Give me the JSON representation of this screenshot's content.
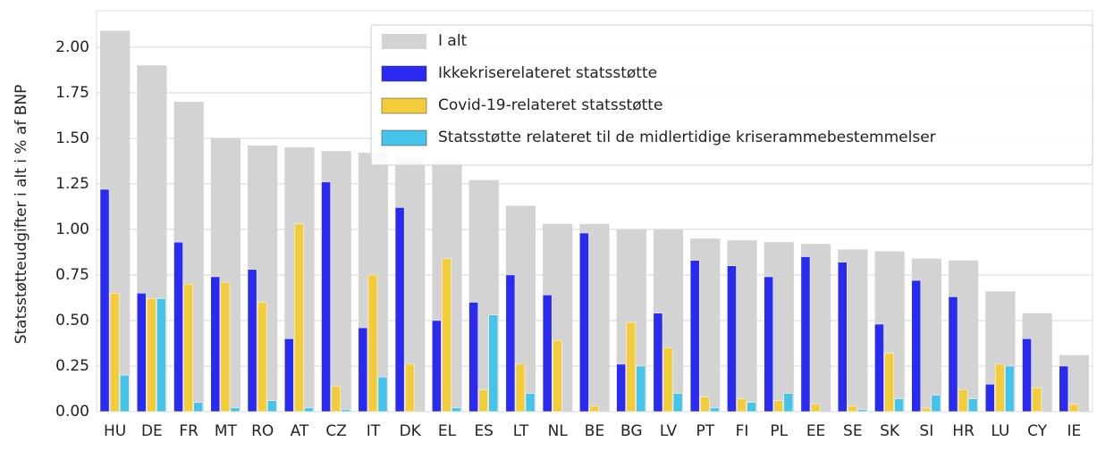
{
  "chart_data": {
    "type": "grouped-bar",
    "ylabel": "Statsstøtteudgifter i alt i % af BNP",
    "categories": [
      "HU",
      "DE",
      "FR",
      "MT",
      "RO",
      "AT",
      "CZ",
      "IT",
      "DK",
      "EL",
      "ES",
      "LT",
      "NL",
      "BE",
      "BG",
      "LV",
      "PT",
      "FI",
      "PL",
      "EE",
      "SE",
      "SK",
      "SI",
      "HR",
      "LU",
      "CY",
      "IE"
    ],
    "series": [
      {
        "name": "I alt",
        "color": "#d3d3d3",
        "values": [
          2.09,
          1.9,
          1.7,
          1.5,
          1.46,
          1.45,
          1.43,
          1.42,
          1.39,
          1.38,
          1.27,
          1.13,
          1.03,
          1.03,
          1.0,
          1.0,
          0.95,
          0.94,
          0.93,
          0.92,
          0.89,
          0.88,
          0.84,
          0.83,
          0.66,
          0.54,
          0.31
        ]
      },
      {
        "name": "Ikkekriserelateret statsstøtte",
        "color": "#2b2bef",
        "values": [
          1.22,
          0.65,
          0.93,
          0.74,
          0.78,
          0.4,
          1.26,
          0.46,
          1.12,
          0.5,
          0.6,
          0.75,
          0.64,
          0.98,
          0.26,
          0.54,
          0.83,
          0.8,
          0.74,
          0.85,
          0.82,
          0.48,
          0.72,
          0.63,
          0.15,
          0.4,
          0.25
        ]
      },
      {
        "name": "Covid-19-relateret statsstøtte",
        "color": "#f2cc3a",
        "values": [
          0.65,
          0.62,
          0.7,
          0.71,
          0.6,
          1.03,
          0.14,
          0.75,
          0.26,
          0.84,
          0.12,
          0.26,
          0.39,
          0.03,
          0.49,
          0.35,
          0.08,
          0.07,
          0.06,
          0.04,
          0.03,
          0.32,
          0.02,
          0.12,
          0.26,
          0.13,
          0.04
        ]
      },
      {
        "name": "Statsstøtte relateret til de midlertidige kriserammebestemmelser",
        "color": "#45c3e8",
        "values": [
          0.2,
          0.62,
          0.05,
          0.02,
          0.06,
          0.02,
          0.01,
          0.19,
          0.0,
          0.02,
          0.53,
          0.1,
          0.0,
          0.0,
          0.25,
          0.1,
          0.02,
          0.05,
          0.1,
          0.0,
          0.01,
          0.07,
          0.09,
          0.07,
          0.25,
          0.0,
          0.0
        ]
      }
    ],
    "ylim": [
      0,
      2.2
    ],
    "yticks": [
      {
        "value": 0,
        "label": "0.00"
      },
      {
        "value": 0.25,
        "label": "0.25"
      },
      {
        "value": 0.5,
        "label": "0.50"
      },
      {
        "value": 0.75,
        "label": "0.75"
      },
      {
        "value": 1,
        "label": "1.00"
      },
      {
        "value": 1.25,
        "label": "1.25"
      },
      {
        "value": 1.5,
        "label": "1.50"
      },
      {
        "value": 1.75,
        "label": "1.75"
      },
      {
        "value": 2,
        "label": "2.00"
      }
    ],
    "grid": true,
    "legend": "upper right"
  }
}
